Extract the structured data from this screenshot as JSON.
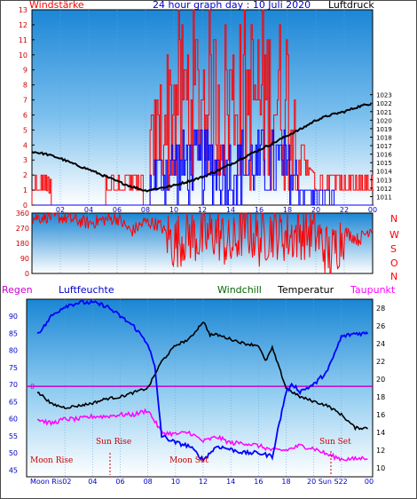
{
  "header": {
    "left_label": "Windstärke",
    "title": "24 hour graph day : 10 Juli 2020",
    "right_label": "Luftdruck"
  },
  "legend": {
    "regen": "Regen",
    "luftfeuchte": "Luftfeuchte",
    "windchill": "Windchill",
    "temperatur": "Temperatur",
    "taupunkt": "Taupunkt"
  },
  "compass": [
    "N",
    "W",
    "S",
    "O",
    "N"
  ],
  "x_ticks": [
    "02",
    "04",
    "06",
    "08",
    "10",
    "12",
    "14",
    "16",
    "18",
    "20",
    "22",
    "00"
  ],
  "events": {
    "moon_rise": "Moon Rise",
    "sun_rise": "Sun Rise",
    "moon_set": "Moon Set",
    "sun_set": "Sun Set",
    "bottom_left": "Moon Ris02",
    "bottom_right": "20 Sun S22"
  },
  "colors": {
    "wind_gust": "#ff0000",
    "wind_avg": "#0000ff",
    "pressure": "#000000",
    "humidity": "#0000ff",
    "temperature": "#000000",
    "dewpoint": "#ff00ff",
    "zero_line": "#cc00cc"
  },
  "chart_data": [
    {
      "type": "line",
      "title": "24 hour graph day : 10 Juli 2020",
      "x_unit": "hour",
      "ylabel": "Windstärke",
      "y2label": "Luftdruck",
      "ylim": [
        0,
        13
      ],
      "y2lim": [
        1010,
        1033
      ],
      "y_ticks": [
        0,
        1,
        2,
        3,
        4,
        5,
        6,
        7,
        8,
        9,
        10,
        11,
        12,
        13
      ],
      "y2_ticks": [
        1011,
        1012,
        1013,
        1014,
        1015,
        1016,
        1017,
        1018,
        1019,
        1020,
        1021,
        1022,
        1023
      ],
      "series": [
        {
          "name": "Luftdruck",
          "axis": "right",
          "x": [
            0,
            1,
            2,
            3,
            4,
            5,
            6,
            7,
            8,
            9,
            10,
            11,
            12,
            13,
            14,
            15,
            16,
            17,
            18,
            19,
            20,
            21,
            22,
            23,
            24
          ],
          "y": [
            1016.3,
            1016.0,
            1015.5,
            1014.8,
            1014.2,
            1013.5,
            1012.8,
            1012.2,
            1011.7,
            1012.0,
            1012.3,
            1012.8,
            1013.3,
            1014.0,
            1014.8,
            1015.7,
            1016.5,
            1017.3,
            1018.2,
            1019.0,
            1020.0,
            1020.6,
            1021.0,
            1021.6,
            1022.0
          ]
        }
      ],
      "wind_gust_max": [
        2,
        2,
        1,
        1,
        1,
        1,
        1,
        2,
        3,
        8,
        12,
        12,
        12,
        12,
        12,
        12,
        12,
        12,
        12,
        3,
        2,
        2,
        2,
        2,
        2
      ],
      "wind_avg_max": [
        0,
        0,
        0,
        0,
        0,
        0,
        0,
        1,
        2,
        4,
        5,
        5,
        5,
        5,
        5,
        5,
        5,
        5,
        5,
        2,
        1,
        1,
        0,
        0,
        0
      ]
    },
    {
      "type": "line",
      "ylabel": "Windrichtung",
      "ylim": [
        0,
        360
      ],
      "y_ticks": [
        0,
        90,
        180,
        270,
        360
      ],
      "series": [
        {
          "name": "Windrichtung",
          "x": [
            0,
            1,
            2,
            3,
            4,
            5,
            6,
            7,
            8,
            9,
            10,
            11,
            12,
            13,
            14,
            15,
            16,
            17,
            18,
            19,
            20,
            21,
            22,
            23,
            24
          ],
          "y": [
            330,
            340,
            335,
            320,
            300,
            320,
            330,
            250,
            310,
            290,
            180,
            240,
            200,
            250,
            150,
            280,
            200,
            260,
            220,
            250,
            240,
            100,
            250,
            200,
            280
          ]
        }
      ]
    },
    {
      "type": "line",
      "ylabel": "Luftfeuchte",
      "y2label": "Temperatur",
      "ylim": [
        43,
        95
      ],
      "y2lim": [
        9,
        29
      ],
      "y_ticks": [
        45,
        50,
        55,
        60,
        65,
        70,
        75,
        80,
        85,
        90
      ],
      "y2_ticks": [
        10,
        12,
        14,
        16,
        18,
        20,
        22,
        24,
        26,
        28
      ],
      "series": [
        {
          "name": "Luftfeuchte",
          "axis": "left",
          "x": [
            0,
            0.5,
            1,
            2,
            3,
            4,
            5,
            6,
            7,
            8,
            8.5,
            9,
            10,
            11,
            12,
            13,
            14,
            15,
            16,
            17,
            18,
            18.5,
            19,
            20,
            21,
            22,
            23,
            24
          ],
          "y": [
            85,
            87,
            90,
            93,
            94,
            94,
            93,
            90,
            87,
            82,
            75,
            55,
            53,
            52,
            48,
            52,
            51,
            50,
            50,
            49,
            68,
            70,
            68,
            70,
            74,
            84,
            85,
            85
          ]
        },
        {
          "name": "Temperatur",
          "axis": "right",
          "x": [
            0,
            0.5,
            1,
            2,
            3,
            4,
            5,
            6,
            7,
            8,
            9,
            10,
            11,
            12,
            12.5,
            13,
            14,
            15,
            16,
            16.5,
            17,
            18,
            19,
            20,
            21,
            22,
            23,
            24
          ],
          "y": [
            18.5,
            18.0,
            17.2,
            16.8,
            17.0,
            17.3,
            17.8,
            18.0,
            18.5,
            19.0,
            22.0,
            23.8,
            24.5,
            26.5,
            25.0,
            25.0,
            24.5,
            24.0,
            23.8,
            22.0,
            23.5,
            19.0,
            18.0,
            17.5,
            17.0,
            16.0,
            14.5,
            14.5
          ]
        },
        {
          "name": "Taupunkt",
          "axis": "right",
          "x": [
            0,
            1,
            2,
            3,
            4,
            5,
            6,
            7,
            8,
            9,
            10,
            11,
            12,
            13,
            14,
            15,
            16,
            17,
            18,
            19,
            20,
            21,
            22,
            23,
            24
          ],
          "y": [
            15.5,
            15.0,
            15.5,
            15.5,
            15.8,
            15.8,
            16.0,
            16.0,
            16.5,
            14.0,
            13.8,
            14.0,
            13.0,
            13.5,
            12.8,
            12.8,
            12.5,
            12.0,
            12.0,
            12.5,
            12.2,
            11.5,
            11.0,
            11.0,
            11.2
          ]
        }
      ]
    }
  ]
}
